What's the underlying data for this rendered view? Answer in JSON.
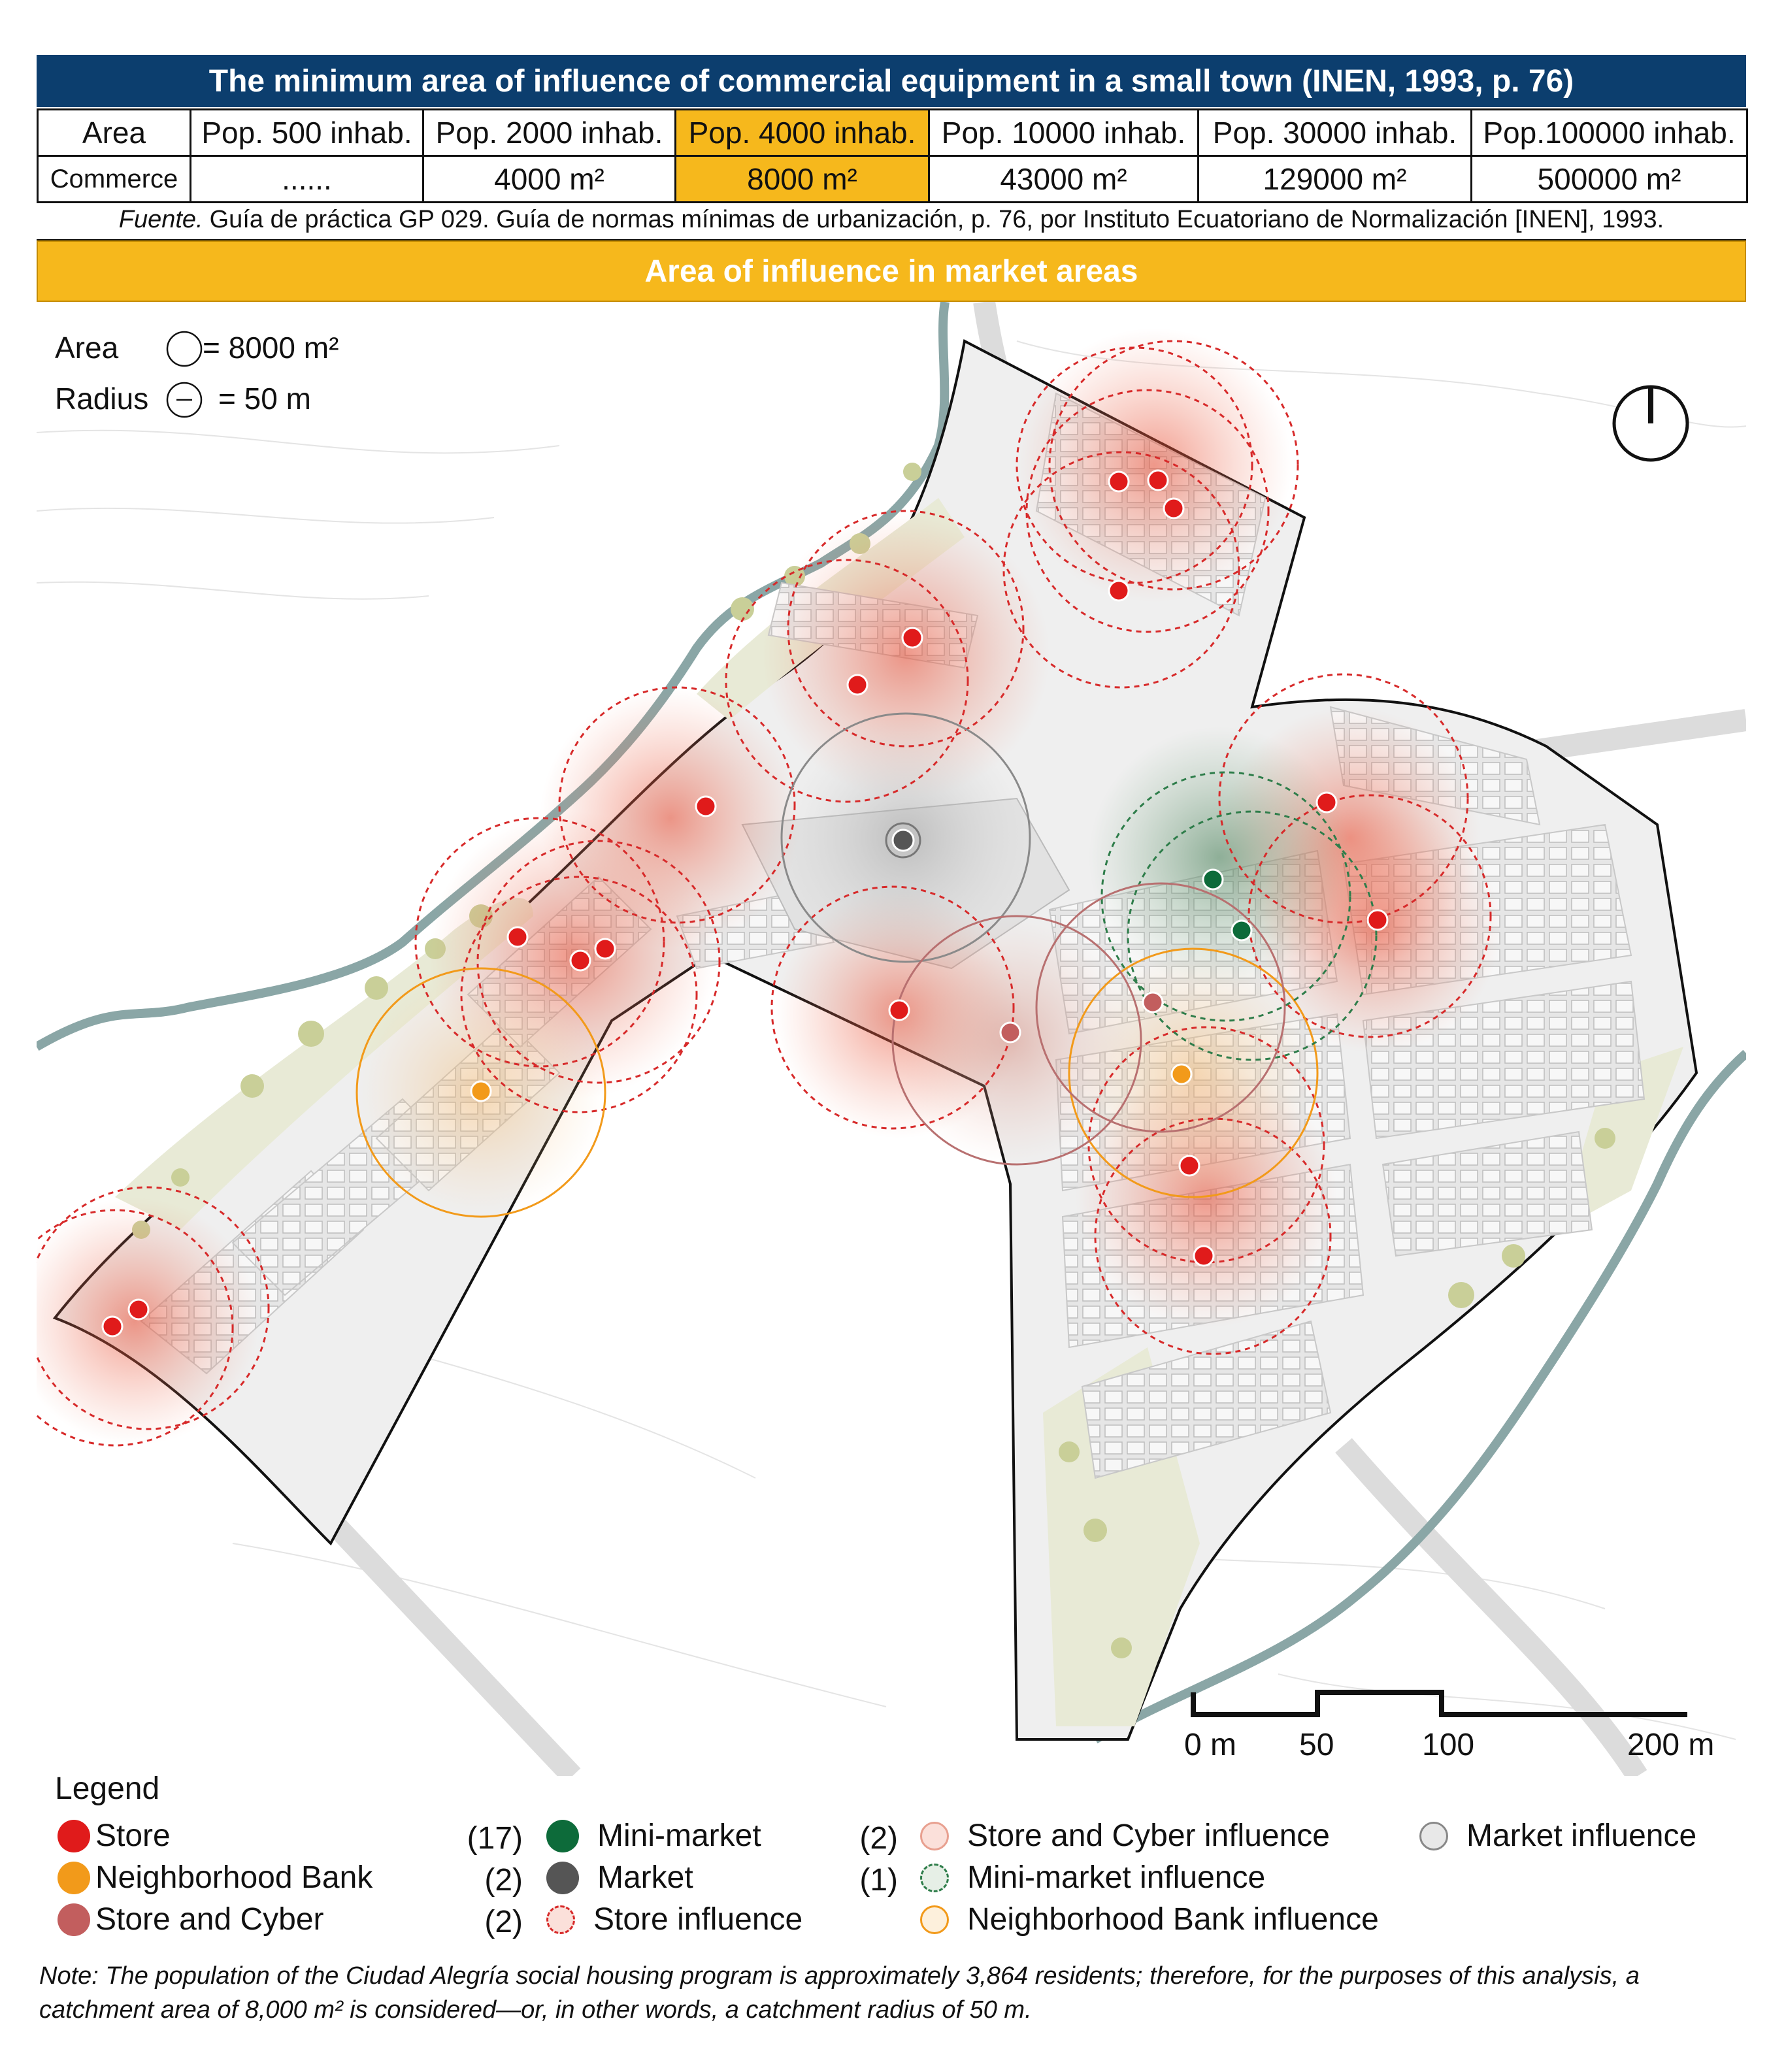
{
  "header": {
    "title": "The minimum area of influence of commercial equipment in a small town (INEN, 1993, p. 76)"
  },
  "table": {
    "row1": [
      "Area",
      "Pop. 500 inhab.",
      "Pop. 2000 inhab.",
      "Pop. 4000 inhab.",
      "Pop. 10000 inhab.",
      "Pop. 30000 inhab.",
      "Pop.100000 inhab."
    ],
    "row2": [
      "Commerce",
      "......",
      "4000 m²",
      "8000 m²",
      "43000 m²",
      "129000 m²",
      "500000 m²"
    ],
    "highlight_col": 3,
    "highlight_color": "#f6b81c"
  },
  "source": {
    "italic": "Fuente.",
    "text": "Guía de práctica GP 029. Guía de normas mínimas de urbanización, p. 76, por Instituto Ecuatoriano de Normalización [INEN], 1993."
  },
  "band_title": "Area of influence in market areas",
  "map": {
    "key_area_label": "Area",
    "key_area_value": "= 8000 m²",
    "key_radius_label": "Radius",
    "key_radius_value": "= 50 m",
    "scale_labels": [
      "0 m",
      "50",
      "100",
      "200 m"
    ],
    "north_icon": "north-arrow-icon"
  },
  "legend": {
    "title": "Legend",
    "items": [
      {
        "label": "Store",
        "count": "(17)",
        "color": "#e01b1b"
      },
      {
        "label": "Neighborhood Bank",
        "count": "(2)",
        "color": "#f29a1a"
      },
      {
        "label": "Store and Cyber",
        "count": "(2)",
        "color": "#c25e5e"
      },
      {
        "label": "Mini-market",
        "count": "(2)",
        "color": "#0d6b3a"
      },
      {
        "label": "Market",
        "count": "(1)",
        "color": "#555555"
      },
      {
        "label": "Store influence",
        "color": "#e01b1b"
      },
      {
        "label": "Store and Cyber influence",
        "color": "#e8a090"
      },
      {
        "label": "Mini-market influence",
        "color": "#2e7d4a"
      },
      {
        "label": "Neighborhood Bank influence",
        "color": "#f29a1a"
      },
      {
        "label": "Market influence",
        "color": "#888888"
      }
    ]
  },
  "note": "Note: The population of the Ciudad Alegría social housing program is approximately 3,864 residents; therefore, for the purposes of this analysis, a catchment area of 8,000 m² is considered—or, in other words, a catchment radius of 50 m."
}
